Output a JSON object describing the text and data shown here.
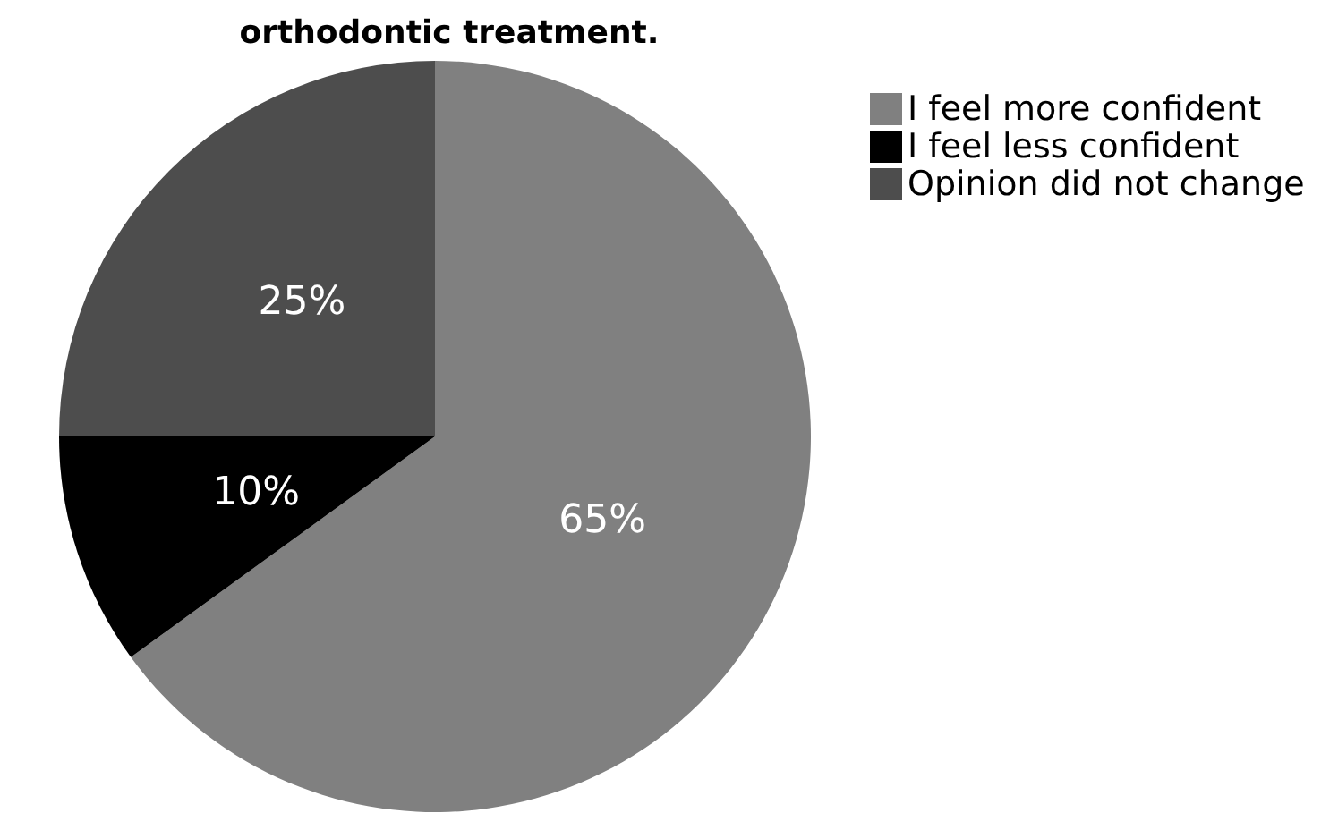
{
  "chart_data": {
    "type": "pie",
    "title": "orthodontic treatment.",
    "categories": [
      "I feel more confident",
      "I feel less confident",
      "Opinion did not change"
    ],
    "values": [
      65,
      10,
      25
    ],
    "colors": [
      "#808080",
      "#000000",
      "#4d4d4d"
    ],
    "value_labels": [
      "65%",
      "10%",
      "25%"
    ],
    "legend": "top right"
  }
}
